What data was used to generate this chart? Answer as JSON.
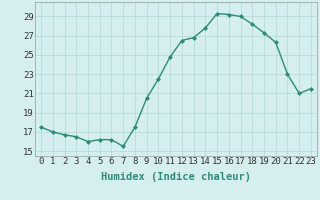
{
  "x": [
    0,
    1,
    2,
    3,
    4,
    5,
    6,
    7,
    8,
    9,
    10,
    11,
    12,
    13,
    14,
    15,
    16,
    17,
    18,
    19,
    20,
    21,
    22,
    23
  ],
  "y": [
    17.5,
    17.0,
    16.7,
    16.5,
    16.0,
    16.2,
    16.2,
    15.5,
    17.5,
    20.5,
    22.5,
    24.8,
    26.5,
    26.8,
    27.8,
    29.3,
    29.2,
    29.0,
    28.2,
    27.3,
    26.3,
    23.0,
    21.0,
    21.5
  ],
  "line_color": "#2d8b7a",
  "marker_color": "#2d8b7a",
  "bg_color": "#d5efef",
  "grid_color": "#b2d8d8",
  "xlabel": "Humidex (Indice chaleur)",
  "xlim": [
    -0.5,
    23.5
  ],
  "ylim": [
    14.5,
    30.5
  ],
  "yticks": [
    15,
    17,
    19,
    21,
    23,
    25,
    27,
    29
  ],
  "xlabel_fontsize": 7.5,
  "tick_fontsize": 6.5
}
